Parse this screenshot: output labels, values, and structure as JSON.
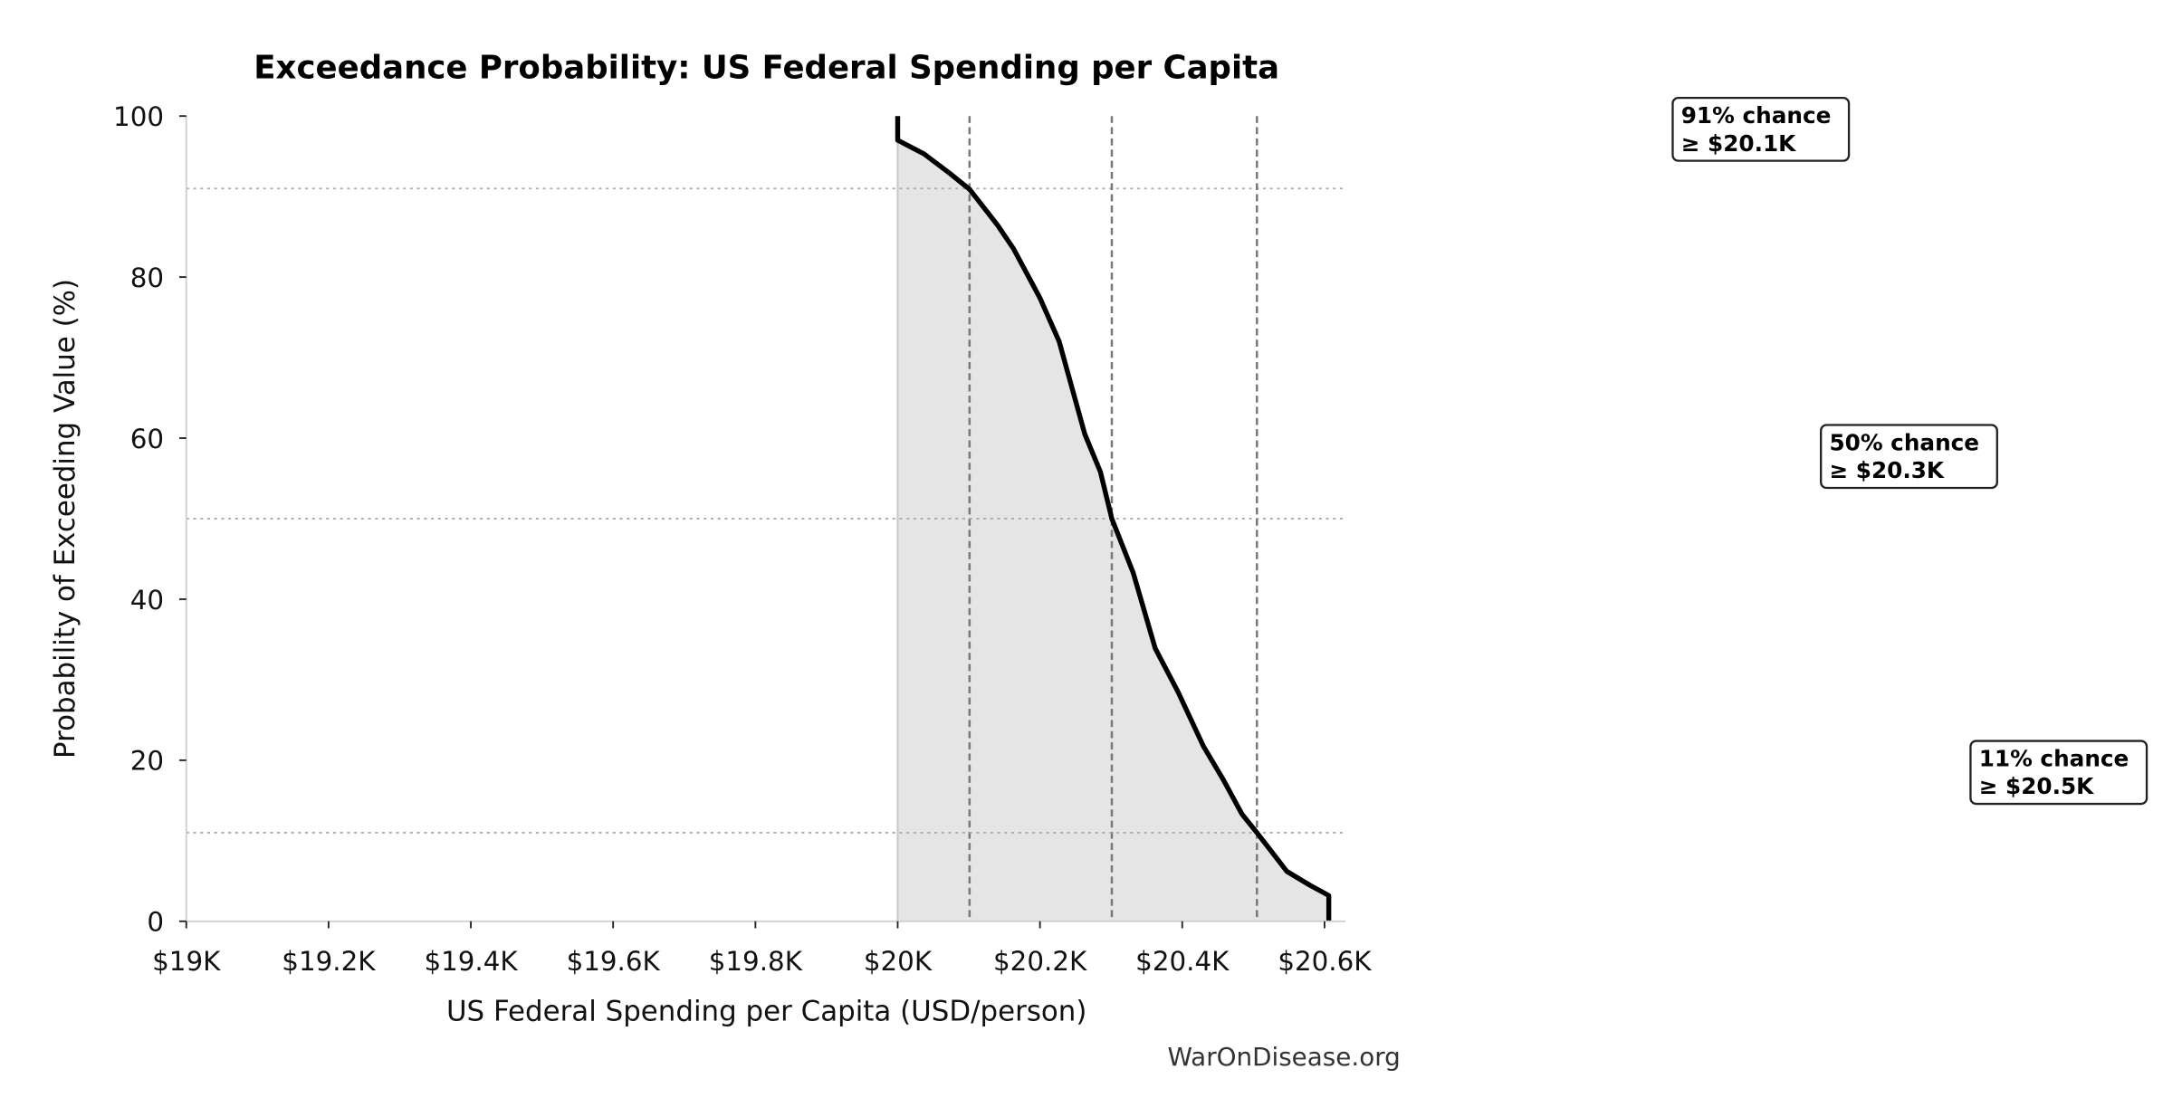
{
  "chart_data": {
    "type": "area",
    "title": "Exceedance Probability: US Federal Spending per Capita",
    "xlabel": "US Federal Spending per Capita (USD/person)",
    "ylabel": "Probability of Exceeding Value (%)",
    "xlim": [
      19000,
      20630
    ],
    "ylim": [
      0,
      100
    ],
    "x_ticks": [
      {
        "value": 19000,
        "label": "$19K"
      },
      {
        "value": 19200,
        "label": "$19.2K"
      },
      {
        "value": 19400,
        "label": "$19.4K"
      },
      {
        "value": 19600,
        "label": "$19.6K"
      },
      {
        "value": 19800,
        "label": "$19.8K"
      },
      {
        "value": 20000,
        "label": "$20K"
      },
      {
        "value": 20200,
        "label": "$20.2K"
      },
      {
        "value": 20400,
        "label": "$20.4K"
      },
      {
        "value": 20600,
        "label": "$20.6K"
      }
    ],
    "y_ticks": [
      {
        "value": 0,
        "label": "0"
      },
      {
        "value": 20,
        "label": "20"
      },
      {
        "value": 40,
        "label": "40"
      },
      {
        "value": 60,
        "label": "60"
      },
      {
        "value": 80,
        "label": "80"
      },
      {
        "value": 100,
        "label": "100"
      }
    ],
    "grid": false,
    "series": [
      {
        "x": [
          20000,
          20000,
          20037,
          20073,
          20101,
          20140,
          20163,
          20200,
          20227,
          20263,
          20285,
          20301,
          20331,
          20362,
          20394,
          20430,
          20457,
          20484,
          20505,
          20547,
          20579,
          20606,
          20606
        ],
        "y": [
          100,
          97.0,
          95.3,
          92.9,
          90.9,
          86.5,
          83.5,
          77.4,
          72.0,
          60.5,
          55.8,
          50.0,
          43.3,
          33.9,
          28.5,
          21.7,
          17.7,
          13.3,
          11.0,
          6.2,
          4.5,
          3.2,
          0
        ],
        "color": "#000000",
        "fill_color": "#e5e5e5"
      }
    ],
    "reference_lines": [
      {
        "probability": 91,
        "value": 20101,
        "label_line1": "91% chance",
        "label_line2": "≥ $20.1K"
      },
      {
        "probability": 50,
        "value": 20301,
        "label_line1": "50% chance",
        "label_line2": "≥ $20.3K"
      },
      {
        "probability": 11,
        "value": 20505,
        "label_line1": "11% chance",
        "label_line2": "≥ $20.5K"
      }
    ],
    "watermark": "WarOnDisease.org"
  }
}
